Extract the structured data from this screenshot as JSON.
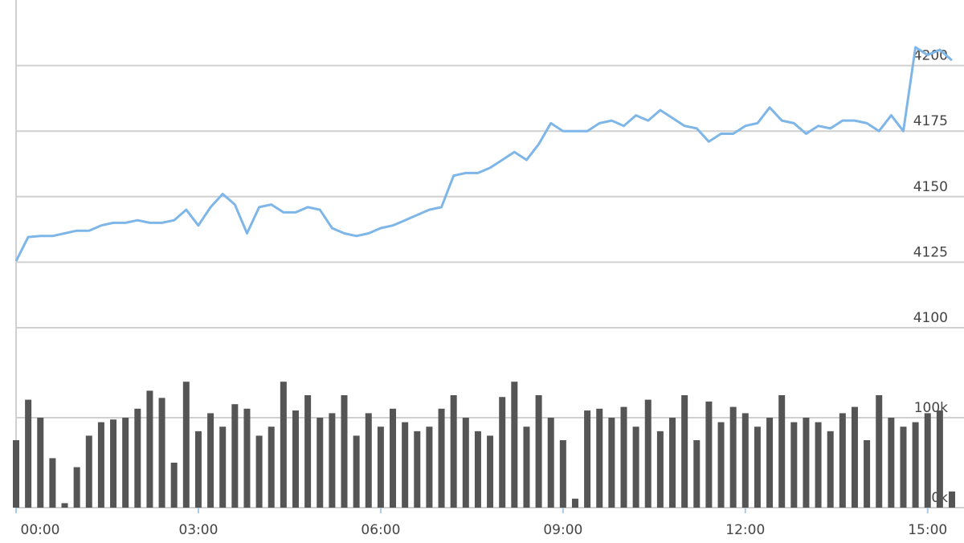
{
  "chart_data": [
    {
      "type": "line",
      "color": "#7eb6e8",
      "x": [
        0,
        0.2,
        0.4,
        0.6,
        0.8,
        1,
        1.2,
        1.4,
        1.6,
        1.8,
        2,
        2.2,
        2.4,
        2.6,
        2.8,
        3,
        3.2,
        3.4,
        3.6,
        3.8,
        4,
        4.2,
        4.4,
        4.6,
        4.8,
        5,
        5.2,
        5.4,
        5.6,
        5.8,
        6,
        6.2,
        6.4,
        6.6,
        6.8,
        7,
        7.2,
        7.4,
        7.6,
        7.8,
        8,
        8.2,
        8.4,
        8.6,
        8.8,
        9,
        9.2,
        9.4,
        9.6,
        9.8,
        10,
        10.2,
        10.4,
        10.6,
        10.8,
        11,
        11.2,
        11.4,
        11.6,
        11.8,
        12,
        12.2,
        12.4,
        12.6,
        12.8,
        13,
        13.2,
        13.4,
        13.6,
        13.8,
        14,
        14.2,
        14.4,
        14.6,
        14.8,
        15,
        15.2,
        15.4
      ],
      "values": [
        4125.4,
        4134.6,
        4135,
        4135,
        4136,
        4137,
        4137,
        4139,
        4140,
        4140,
        4141,
        4140,
        4140,
        4141,
        4145,
        4139,
        4146,
        4151,
        4147,
        4136,
        4146,
        4147,
        4144,
        4144,
        4146,
        4145,
        4138,
        4136,
        4135,
        4136,
        4138,
        4139,
        4141,
        4143,
        4145,
        4146,
        4158,
        4159,
        4159,
        4161,
        4164,
        4167,
        4164,
        4170,
        4178,
        4175,
        4175,
        4175,
        4178,
        4179,
        4177,
        4181,
        4179,
        4183,
        4180,
        4177,
        4176,
        4171,
        4174,
        4174,
        4177,
        4178,
        4184,
        4179,
        4178,
        4174,
        4177,
        4176,
        4179,
        4179,
        4178,
        4175,
        4181,
        4175,
        4207,
        4204,
        4206,
        4202
      ],
      "xlim": [
        0,
        15.4
      ],
      "ylim": [
        4100,
        4225
      ],
      "yticks": [
        4100,
        4125,
        4150,
        4175,
        4200
      ],
      "grid": true
    },
    {
      "type": "bar",
      "color": "#555555",
      "x": [
        0,
        0.2,
        0.4,
        0.6,
        0.8,
        1,
        1.2,
        1.4,
        1.6,
        1.8,
        2,
        2.2,
        2.4,
        2.6,
        2.8,
        3,
        3.2,
        3.4,
        3.6,
        3.8,
        4,
        4.2,
        4.4,
        4.6,
        4.8,
        5,
        5.2,
        5.4,
        5.6,
        5.8,
        6,
        6.2,
        6.4,
        6.6,
        6.8,
        7,
        7.2,
        7.4,
        7.6,
        7.8,
        8,
        8.2,
        8.4,
        8.6,
        8.8,
        9,
        9.2,
        9.4,
        9.6,
        9.8,
        10,
        10.2,
        10.4,
        10.6,
        10.8,
        11,
        11.2,
        11.4,
        11.6,
        11.8,
        12,
        12.2,
        12.4,
        12.6,
        12.8,
        13,
        13.2,
        13.4,
        13.6,
        13.8,
        14,
        14.2,
        14.4,
        14.6,
        14.8,
        15,
        15.2,
        15.4
      ],
      "values": [
        75000,
        120000,
        100000,
        55000,
        5000,
        45000,
        80000,
        95000,
        98000,
        100000,
        110000,
        130000,
        122000,
        50000,
        140000,
        85000,
        105000,
        90000,
        115000,
        110000,
        80000,
        90000,
        140000,
        108000,
        125000,
        100000,
        105000,
        125000,
        80000,
        105000,
        90000,
        110000,
        95000,
        85000,
        90000,
        110000,
        125000,
        100000,
        85000,
        80000,
        123000,
        140000,
        90000,
        125000,
        100000,
        75000,
        10000,
        108000,
        110000,
        100000,
        112000,
        90000,
        120000,
        85000,
        100000,
        125000,
        75000,
        118000,
        95000,
        112000,
        105000,
        90000,
        100000,
        125000,
        95000,
        100000,
        95000,
        85000,
        105000,
        112000,
        75000,
        125000,
        100000,
        90000,
        95000,
        105000,
        108000,
        18000
      ],
      "xlim": [
        0,
        15.4
      ],
      "xticks": [
        {
          "value": 0,
          "label": "00:00"
        },
        {
          "value": 3,
          "label": "03:00"
        },
        {
          "value": 6,
          "label": "06:00"
        },
        {
          "value": 9,
          "label": "09:00"
        },
        {
          "value": 12,
          "label": "12:00"
        },
        {
          "value": 15,
          "label": "15:00"
        }
      ],
      "ylim": [
        0,
        200000
      ],
      "yticks": [
        {
          "value": 0,
          "label": "0k"
        },
        {
          "value": 100000,
          "label": "100k"
        }
      ],
      "grid": true
    }
  ]
}
